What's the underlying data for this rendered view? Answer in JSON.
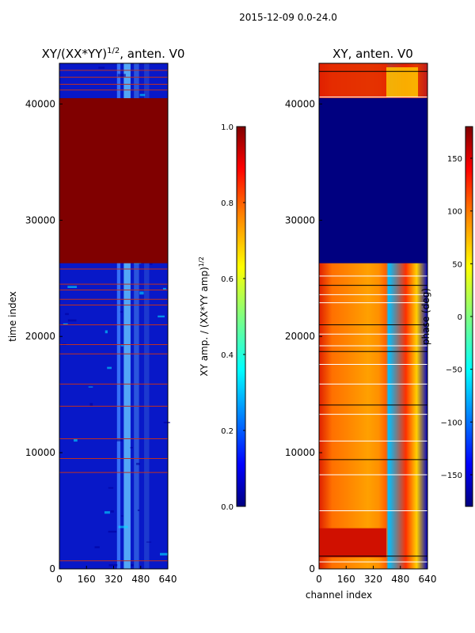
{
  "suptitle": "2015-12-09 0.0-24.0",
  "colors": {
    "jet_dark_red": "#800000",
    "jet_red": "#ff0000",
    "jet_orange": "#ff8000",
    "jet_yellow": "#ffff00",
    "jet_cyan": "#00ffff",
    "jet_blue": "#0000ff",
    "jet_dark_blue": "#000080"
  },
  "chart_data": [
    {
      "type": "heatmap",
      "title": "XY/(XX*YY)",
      "title_exponent": "1/2",
      "title_suffix": ", anten. V0",
      "xlabel": "",
      "ylabel": "time index",
      "x_ticks": [
        "0",
        "160",
        "320",
        "480",
        "640"
      ],
      "y_ticks": [
        "0",
        "10000",
        "20000",
        "30000",
        "40000"
      ],
      "xlim": [
        0,
        640
      ],
      "ylim": [
        0,
        43500
      ],
      "saturated_band": [
        26300,
        40500
      ],
      "colorbar": {
        "label": "XY amp. / (XX*YY amp)",
        "label_exponent": "1/2",
        "ticks": [
          "0.0",
          "0.2",
          "0.4",
          "0.6",
          "0.8",
          "1.0"
        ],
        "range": [
          0.0,
          1.0
        ]
      }
    },
    {
      "type": "heatmap",
      "title": "XY, anten. V0",
      "xlabel": "channel index",
      "ylabel": "",
      "x_ticks": [
        "0",
        "160",
        "320",
        "480",
        "640"
      ],
      "y_ticks": [
        "0",
        "10000",
        "20000",
        "30000",
        "40000"
      ],
      "xlim": [
        0,
        640
      ],
      "ylim": [
        0,
        43500
      ],
      "flagged_band": [
        26300,
        40500
      ],
      "colorbar": {
        "label": "phase (deg)",
        "ticks": [
          "−150",
          "−100",
          "−50",
          "0",
          "50",
          "100",
          "150"
        ],
        "range": [
          -180,
          180
        ]
      }
    }
  ]
}
